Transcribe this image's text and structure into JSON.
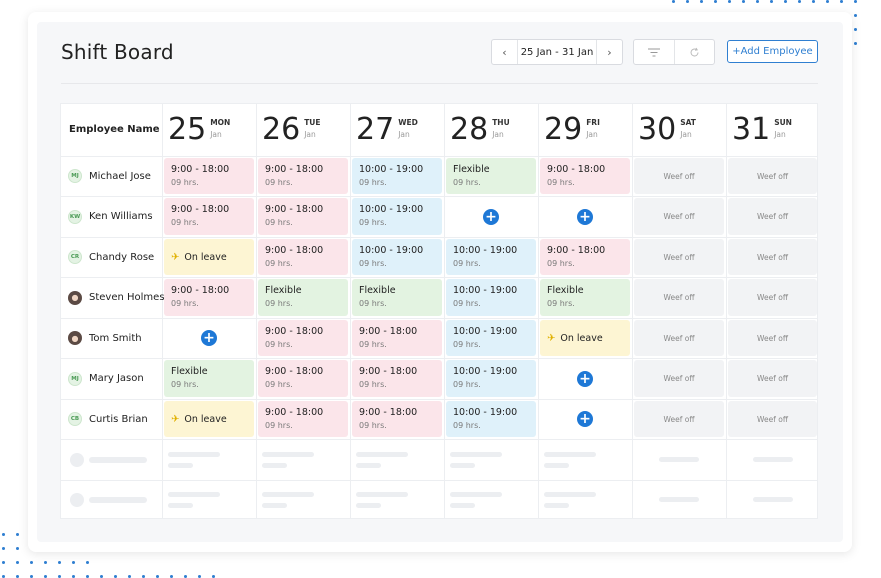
{
  "page": {
    "title": "Shift Board",
    "date_range": "25 Jan - 31 Jan",
    "add_button": "+Add Employee",
    "icons": {
      "prev": "chevron-left-icon",
      "next": "chevron-right-icon",
      "filter": "filter-icon",
      "refresh": "refresh-icon",
      "leave": "plane-icon",
      "add": "plus-circle-icon"
    }
  },
  "colors": {
    "accent": "#1e78d6",
    "pink": "#fbe5ea",
    "blue": "#dff1fa",
    "green": "#e3f3e1",
    "yellow": "#fdf5d3",
    "off": "#f2f3f5"
  },
  "grid": {
    "employee_header": "Employee Name",
    "days": [
      {
        "num": "25",
        "dow": "MON",
        "mon": "Jan"
      },
      {
        "num": "26",
        "dow": "TUE",
        "mon": "Jan"
      },
      {
        "num": "27",
        "dow": "WED",
        "mon": "Jan"
      },
      {
        "num": "28",
        "dow": "THU",
        "mon": "Jan"
      },
      {
        "num": "29",
        "dow": "FRI",
        "mon": "Jan"
      },
      {
        "num": "30",
        "dow": "SAT",
        "mon": "Jan"
      },
      {
        "num": "31",
        "dow": "SUN",
        "mon": "Jan"
      }
    ],
    "employees": [
      {
        "name": "Michael Jose",
        "initials": "MJ"
      },
      {
        "name": "Ken Williams",
        "initials": "KW"
      },
      {
        "name": "Chandy Rose",
        "initials": "CR"
      },
      {
        "name": "Steven Holmes",
        "initials": ""
      },
      {
        "name": "Tom Smith",
        "initials": ""
      },
      {
        "name": "Mary Jason",
        "initials": "MJ"
      },
      {
        "name": "Curtis Brian",
        "initials": "CB"
      }
    ],
    "labels": {
      "shift_9_18": "9:00 - 18:00",
      "shift_10_19": "10:00 - 19:00",
      "hours": "09 hrs.",
      "flexible": "Flexible",
      "on_leave": "On leave",
      "weekend": "Weef off"
    }
  }
}
